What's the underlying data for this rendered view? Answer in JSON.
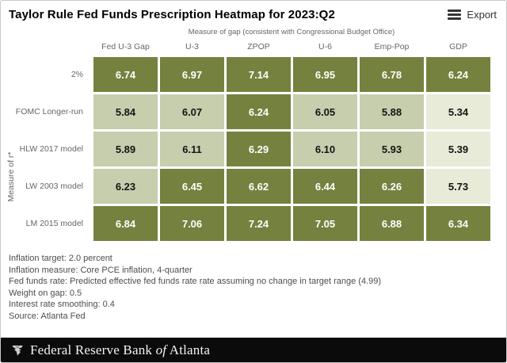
{
  "header": {
    "title": "Taylor Rule Fed Funds Prescription Heatmap for 2023:Q2",
    "export_label": "Export"
  },
  "chart_data": {
    "type": "heatmap",
    "title": "Taylor Rule Fed Funds Prescription Heatmap for 2023:Q2",
    "x_axis_label": "Measure of gap (consistent with Congressional Budget Office)",
    "y_axis_label": "Measure of r*",
    "columns": [
      "Fed U-3 Gap",
      "U-3",
      "ZPOP",
      "U-6",
      "Emp-Pop",
      "GDP"
    ],
    "rows": [
      {
        "label": "2%",
        "values": [
          "6.74",
          "6.97",
          "7.14",
          "6.95",
          "6.78",
          "6.24"
        ],
        "shades": [
          "dark",
          "dark",
          "dark",
          "dark",
          "dark",
          "dark"
        ]
      },
      {
        "label": "FOMC Longer-run",
        "values": [
          "5.84",
          "6.07",
          "6.24",
          "6.05",
          "5.88",
          "5.34"
        ],
        "shades": [
          "mid",
          "mid",
          "dark",
          "mid",
          "mid",
          "light"
        ]
      },
      {
        "label": "HLW 2017 model",
        "values": [
          "5.89",
          "6.11",
          "6.29",
          "6.10",
          "5.93",
          "5.39"
        ],
        "shades": [
          "mid",
          "mid",
          "dark",
          "mid",
          "mid",
          "light"
        ]
      },
      {
        "label": "LW 2003 model",
        "values": [
          "6.23",
          "6.45",
          "6.62",
          "6.44",
          "6.26",
          "5.73"
        ],
        "shades": [
          "mid",
          "dark",
          "dark",
          "dark",
          "dark",
          "light"
        ]
      },
      {
        "label": "LM 2015 model",
        "values": [
          "6.84",
          "7.06",
          "7.24",
          "7.05",
          "6.88",
          "6.34"
        ],
        "shades": [
          "dark",
          "dark",
          "dark",
          "dark",
          "dark",
          "dark"
        ]
      }
    ],
    "colors": {
      "dark": "#75813E",
      "mid": "#C6CEAD",
      "light": "#E7EBD8",
      "text_on_dark": "#FFFFFF",
      "text_on_light": "#141414"
    }
  },
  "notes": [
    "Inflation target: 2.0 percent",
    "Inflation measure: Core PCE inflation, 4-quarter",
    "Fed funds rate: Predicted effective fed funds rate rate assuming no change in target range (4.99)",
    "Weight on gap: 0.5",
    "Interest rate smoothing: 0.4",
    "Source: Atlanta Fed"
  ],
  "footer": {
    "brand_left": "Federal Reserve Bank",
    "brand_italic": "of",
    "brand_right": "Atlanta"
  }
}
